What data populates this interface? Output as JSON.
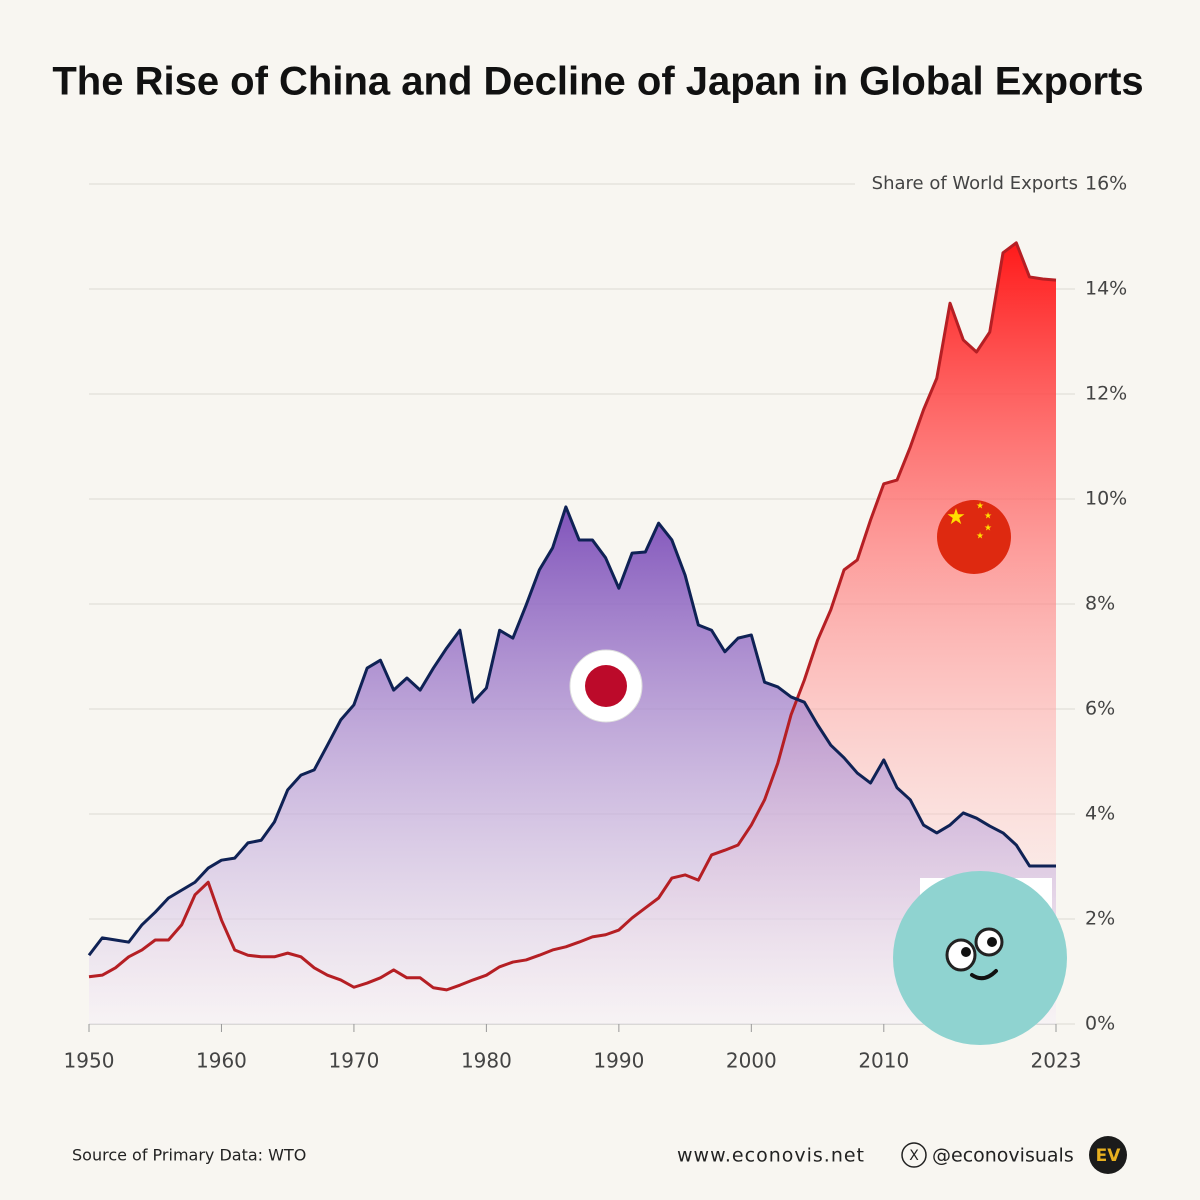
{
  "chart_data": {
    "type": "area",
    "title": "The Rise of China and Decline of Japan in Global Exports",
    "y_axis_label": "Share of World Exports",
    "x": [
      1950,
      1951,
      1952,
      1953,
      1954,
      1955,
      1956,
      1957,
      1958,
      1959,
      1960,
      1961,
      1962,
      1963,
      1964,
      1965,
      1966,
      1967,
      1968,
      1969,
      1970,
      1971,
      1972,
      1973,
      1974,
      1975,
      1976,
      1977,
      1978,
      1979,
      1980,
      1981,
      1982,
      1983,
      1984,
      1985,
      1986,
      1987,
      1988,
      1989,
      1990,
      1991,
      1992,
      1993,
      1994,
      1995,
      1996,
      1997,
      1998,
      1999,
      2000,
      2001,
      2002,
      2003,
      2004,
      2005,
      2006,
      2007,
      2008,
      2009,
      2010,
      2011,
      2012,
      2013,
      2014,
      2015,
      2016,
      2017,
      2018,
      2019,
      2020,
      2021,
      2022,
      2023
    ],
    "series": [
      {
        "color": "#b51f24",
        "fill": "#ff2a2a",
        "values": [
          0.9,
          0.93,
          1.07,
          1.28,
          1.41,
          1.6,
          1.6,
          1.89,
          2.46,
          2.7,
          1.98,
          1.41,
          1.31,
          1.28,
          1.28,
          1.35,
          1.28,
          1.07,
          0.93,
          0.84,
          0.7,
          0.78,
          0.88,
          1.03,
          0.88,
          0.88,
          0.69,
          0.65,
          0.74,
          0.84,
          0.93,
          1.09,
          1.18,
          1.22,
          1.31,
          1.41,
          1.47,
          1.56,
          1.66,
          1.7,
          1.79,
          2.02,
          2.21,
          2.4,
          2.78,
          2.84,
          2.74,
          3.22,
          3.31,
          3.41,
          3.79,
          4.27,
          4.97,
          5.89,
          6.55,
          7.31,
          7.89,
          8.65,
          8.84,
          9.6,
          10.29,
          10.36,
          10.99,
          11.7,
          12.3,
          13.73,
          13.03,
          12.8,
          13.18,
          14.69,
          14.88,
          14.23,
          14.19,
          14.17
        ]
      },
      {
        "color": "#0f2255",
        "fill": "#8a5cc4",
        "values": [
          1.31,
          1.64,
          1.6,
          1.56,
          1.89,
          2.13,
          2.4,
          2.55,
          2.7,
          2.97,
          3.12,
          3.16,
          3.45,
          3.5,
          3.85,
          4.46,
          4.74,
          4.84,
          5.31,
          5.79,
          6.08,
          6.78,
          6.93,
          6.36,
          6.59,
          6.36,
          6.78,
          7.16,
          7.5,
          6.13,
          6.4,
          7.5,
          7.35,
          7.98,
          8.65,
          9.07,
          9.85,
          9.22,
          9.22,
          8.88,
          8.3,
          8.97,
          8.99,
          9.54,
          9.22,
          8.55,
          7.6,
          7.5,
          7.09,
          7.35,
          7.41,
          6.51,
          6.42,
          6.23,
          6.13,
          5.7,
          5.31,
          5.07,
          4.78,
          4.59,
          5.03,
          4.5,
          4.27,
          3.79,
          3.64,
          3.79,
          4.02,
          3.92,
          3.77,
          3.64,
          3.41,
          3.01,
          3.01,
          3.01
        ]
      }
    ],
    "xlim": [
      1950,
      2023
    ],
    "xticks": [
      1950,
      1960,
      1970,
      1980,
      1990,
      2000,
      2010,
      2023
    ],
    "ylim": [
      0,
      16
    ],
    "yticks": [
      {
        "value": 0,
        "label": "0%"
      },
      {
        "value": 2,
        "label": "2%"
      },
      {
        "value": 4,
        "label": "4%"
      },
      {
        "value": 6,
        "label": "6%"
      },
      {
        "value": 8,
        "label": "8%"
      },
      {
        "value": 10,
        "label": "10%"
      },
      {
        "value": 12,
        "label": "12%"
      },
      {
        "value": 14,
        "label": "14%"
      },
      {
        "value": 16,
        "label": "16%"
      }
    ],
    "grid": true
  },
  "footer": {
    "source": "Source of Primary Data: WTO",
    "website": "www.econovis.net",
    "handle": "@econovisuals",
    "logo": "EV"
  }
}
